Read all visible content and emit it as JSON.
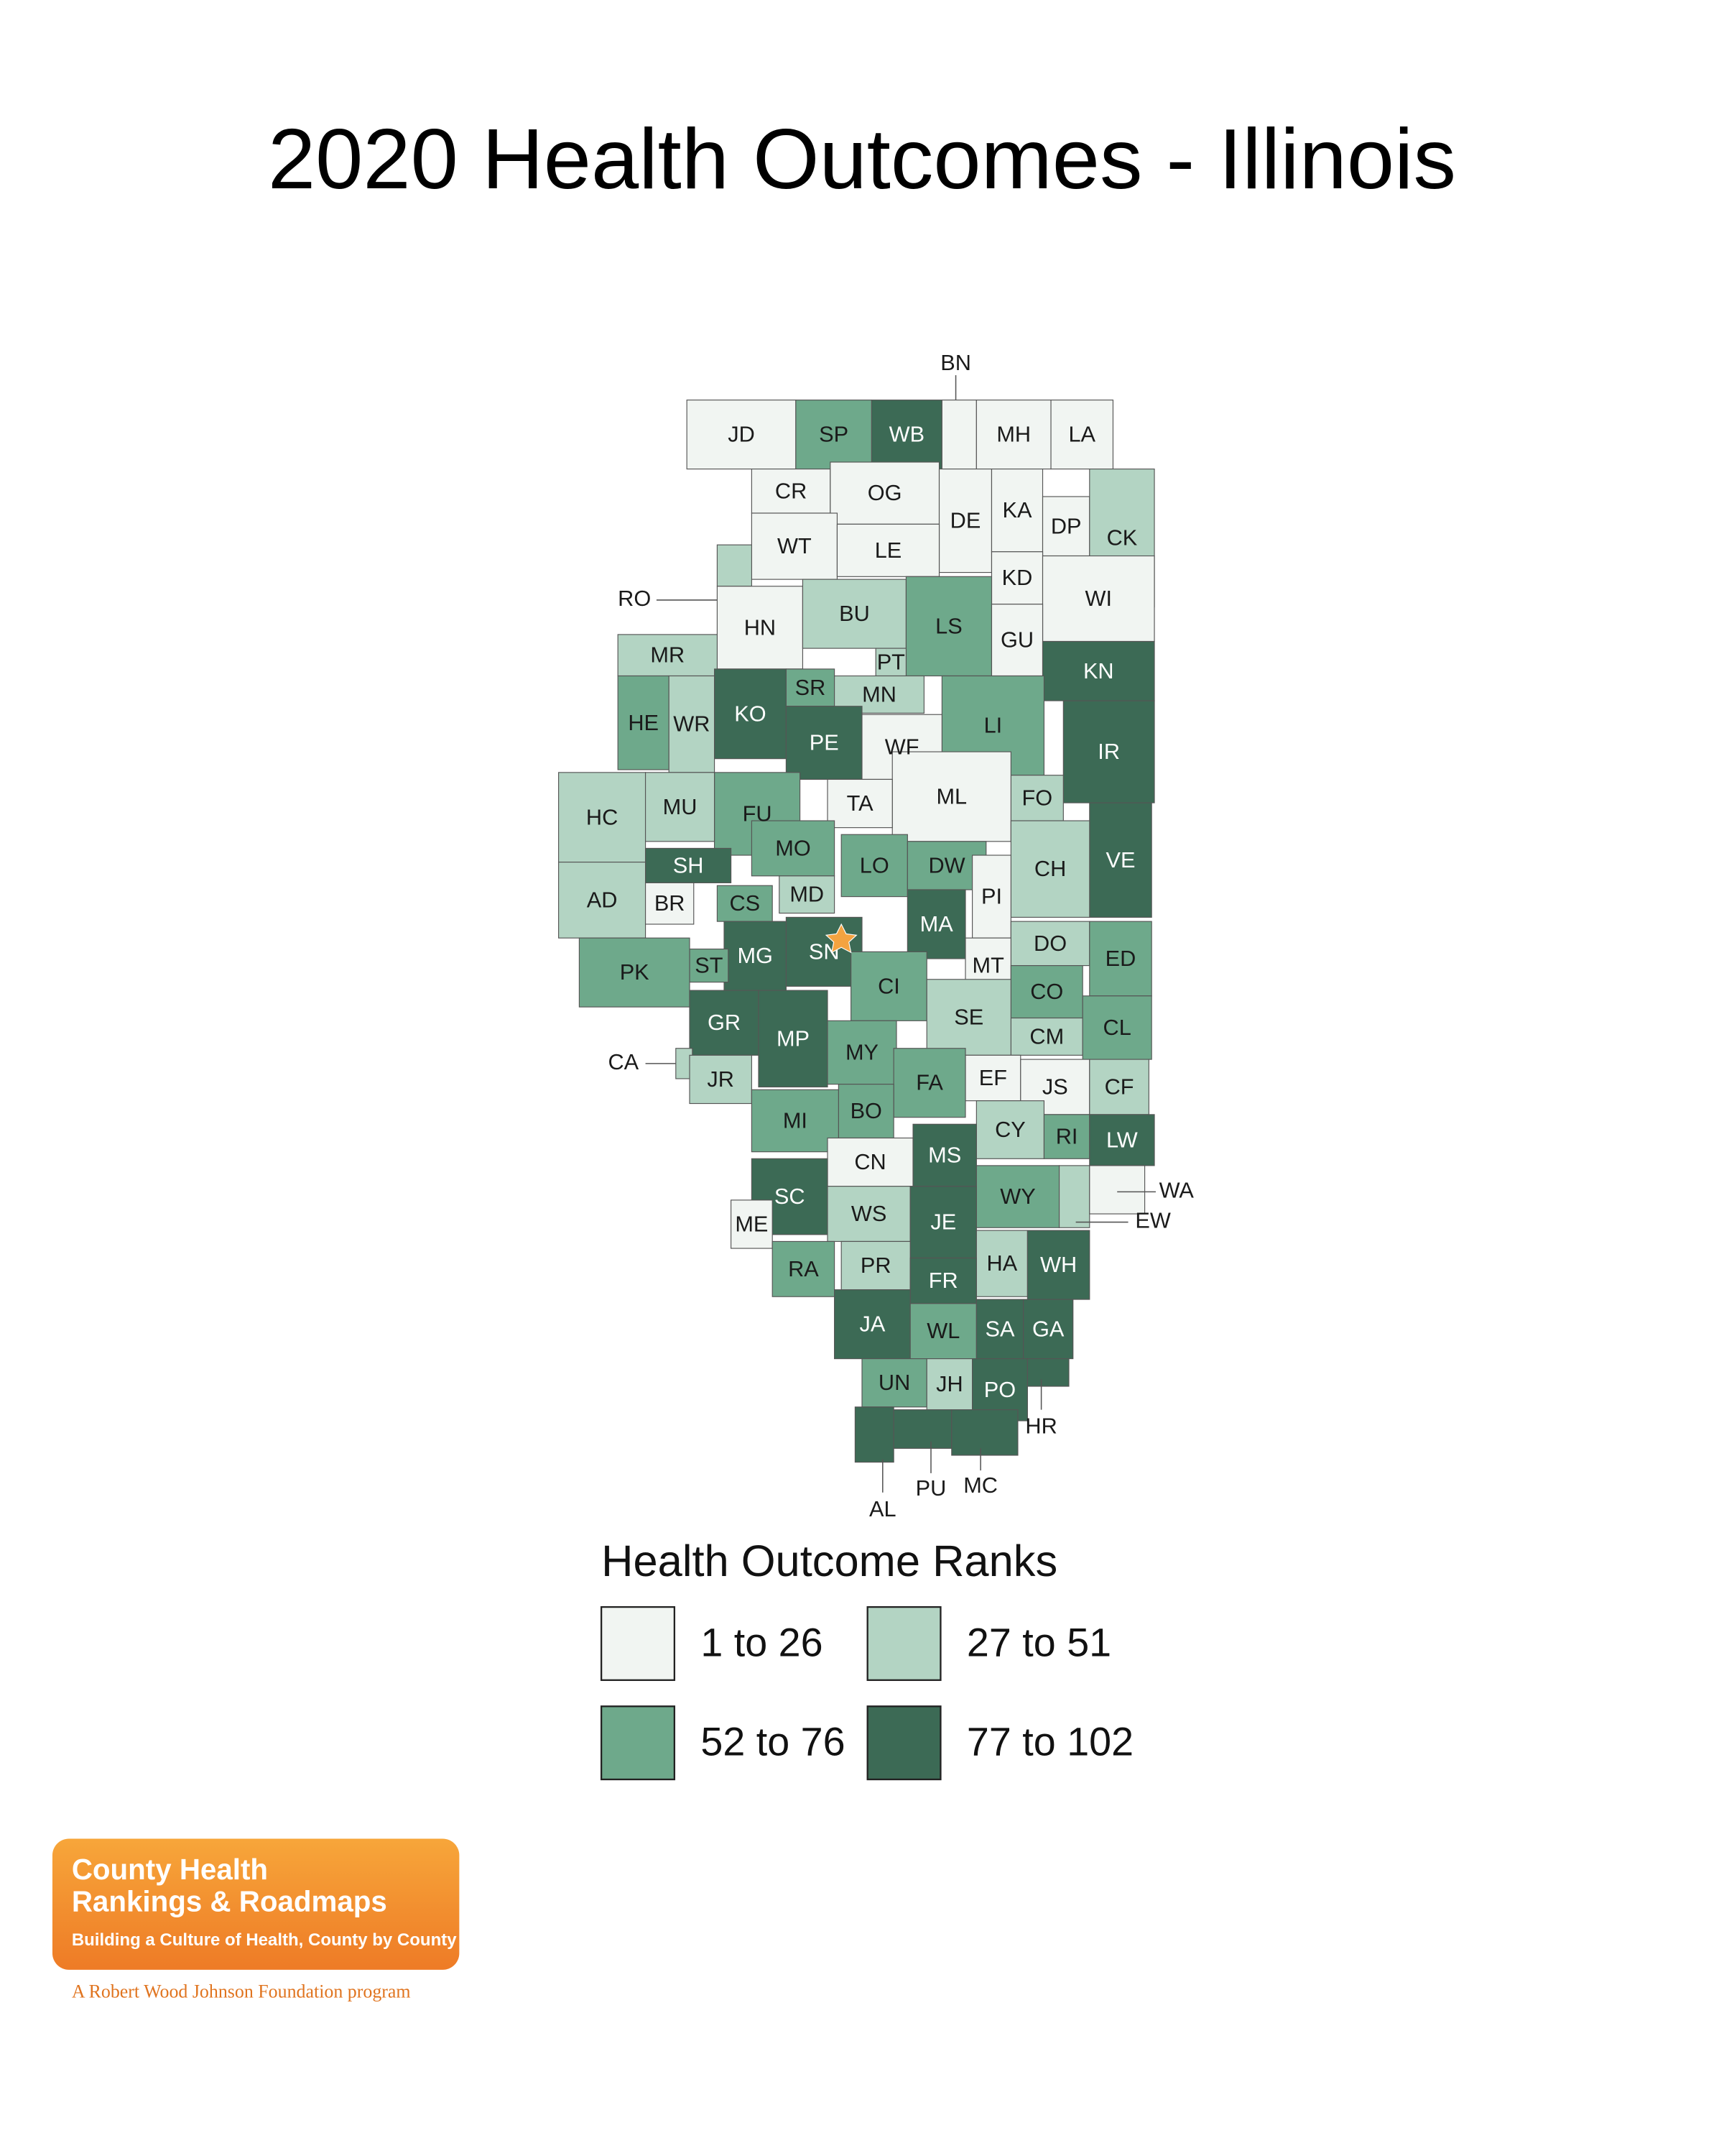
{
  "title": "2020 Health Outcomes - Illinois",
  "counties": [
    {
      "label": "JD",
      "outcome": "1 to 26"
    },
    {
      "label": "SP",
      "outcome": "52 to 76"
    },
    {
      "label": "WB",
      "outcome": "77 to 102"
    },
    {
      "label": "BN",
      "outcome": "1 to 26"
    },
    {
      "label": "MH",
      "outcome": "1 to 26"
    },
    {
      "label": "LA",
      "outcome": "1 to 26"
    },
    {
      "label": "CR",
      "outcome": "1 to 26"
    },
    {
      "label": "OG",
      "outcome": "1 to 26"
    },
    {
      "label": "DE",
      "outcome": "1 to 26"
    },
    {
      "label": "KA",
      "outcome": "1 to 26"
    },
    {
      "label": "DP",
      "outcome": "1 to 26"
    },
    {
      "label": "CK",
      "outcome": "27 to 51"
    },
    {
      "label": "WT",
      "outcome": "1 to 26"
    },
    {
      "label": "LE",
      "outcome": "1 to 26"
    },
    {
      "label": "KD",
      "outcome": "1 to 26"
    },
    {
      "label": "WI",
      "outcome": "1 to 26"
    },
    {
      "label": "RO",
      "outcome": "27 to 51"
    },
    {
      "label": "HN",
      "outcome": "1 to 26"
    },
    {
      "label": "BU",
      "outcome": "27 to 51"
    },
    {
      "label": "LS",
      "outcome": "52 to 76"
    },
    {
      "label": "GU",
      "outcome": "1 to 26"
    },
    {
      "label": "KN",
      "outcome": "77 to 102"
    },
    {
      "label": "MR",
      "outcome": "27 to 51"
    },
    {
      "label": "PT",
      "outcome": "27 to 51"
    },
    {
      "label": "SR",
      "outcome": "52 to 76"
    },
    {
      "label": "MN",
      "outcome": "27 to 51"
    },
    {
      "label": "KO",
      "outcome": "77 to 102"
    },
    {
      "label": "LI",
      "outcome": "52 to 76"
    },
    {
      "label": "IR",
      "outcome": "77 to 102"
    },
    {
      "label": "HE",
      "outcome": "52 to 76"
    },
    {
      "label": "WR",
      "outcome": "27 to 51"
    },
    {
      "label": "PE",
      "outcome": "77 to 102"
    },
    {
      "label": "WF",
      "outcome": "1 to 26"
    },
    {
      "label": "FO",
      "outcome": "27 to 51"
    },
    {
      "label": "ML",
      "outcome": "1 to 26"
    },
    {
      "label": "TA",
      "outcome": "1 to 26"
    },
    {
      "label": "FU",
      "outcome": "52 to 76"
    },
    {
      "label": "HC",
      "outcome": "27 to 51"
    },
    {
      "label": "MU",
      "outcome": "27 to 51"
    },
    {
      "label": "VE",
      "outcome": "77 to 102"
    },
    {
      "label": "CH",
      "outcome": "27 to 51"
    },
    {
      "label": "MO",
      "outcome": "52 to 76"
    },
    {
      "label": "LO",
      "outcome": "52 to 76"
    },
    {
      "label": "DW",
      "outcome": "52 to 76"
    },
    {
      "label": "SH",
      "outcome": "77 to 102"
    },
    {
      "label": "AD",
      "outcome": "27 to 51"
    },
    {
      "label": "BR",
      "outcome": "1 to 26"
    },
    {
      "label": "CS",
      "outcome": "52 to 76"
    },
    {
      "label": "MD",
      "outcome": "27 to 51"
    },
    {
      "label": "PI",
      "outcome": "1 to 26"
    },
    {
      "label": "MA",
      "outcome": "77 to 102"
    },
    {
      "label": "SN",
      "outcome": "77 to 102"
    },
    {
      "label": "MG",
      "outcome": "77 to 102"
    },
    {
      "label": "ST",
      "outcome": "52 to 76"
    },
    {
      "label": "PK",
      "outcome": "52 to 76"
    },
    {
      "label": "DO",
      "outcome": "27 to 51"
    },
    {
      "label": "ED",
      "outcome": "52 to 76"
    },
    {
      "label": "MT",
      "outcome": "1 to 26"
    },
    {
      "label": "CI",
      "outcome": "52 to 76"
    },
    {
      "label": "CO",
      "outcome": "52 to 76"
    },
    {
      "label": "CM",
      "outcome": "27 to 51"
    },
    {
      "label": "CL",
      "outcome": "52 to 76"
    },
    {
      "label": "SE",
      "outcome": "27 to 51"
    },
    {
      "label": "GR",
      "outcome": "77 to 102"
    },
    {
      "label": "MP",
      "outcome": "77 to 102"
    },
    {
      "label": "MY",
      "outcome": "52 to 76"
    },
    {
      "label": "CA",
      "outcome": "27 to 51"
    },
    {
      "label": "JR",
      "outcome": "27 to 51"
    },
    {
      "label": "EF",
      "outcome": "1 to 26"
    },
    {
      "label": "JS",
      "outcome": "1 to 26"
    },
    {
      "label": "CF",
      "outcome": "27 to 51"
    },
    {
      "label": "FA",
      "outcome": "52 to 76"
    },
    {
      "label": "BO",
      "outcome": "52 to 76"
    },
    {
      "label": "MI",
      "outcome": "52 to 76"
    },
    {
      "label": "CY",
      "outcome": "27 to 51"
    },
    {
      "label": "RI",
      "outcome": "52 to 76"
    },
    {
      "label": "LW",
      "outcome": "77 to 102"
    },
    {
      "label": "CN",
      "outcome": "1 to 26"
    },
    {
      "label": "MS",
      "outcome": "77 to 102"
    },
    {
      "label": "SC",
      "outcome": "77 to 102"
    },
    {
      "label": "WY",
      "outcome": "52 to 76"
    },
    {
      "label": "EW",
      "outcome": "27 to 51"
    },
    {
      "label": "WA",
      "outcome": "1 to 26"
    },
    {
      "label": "ME",
      "outcome": "1 to 26"
    },
    {
      "label": "WS",
      "outcome": "27 to 51"
    },
    {
      "label": "JE",
      "outcome": "77 to 102"
    },
    {
      "label": "RA",
      "outcome": "52 to 76"
    },
    {
      "label": "PR",
      "outcome": "27 to 51"
    },
    {
      "label": "HA",
      "outcome": "27 to 51"
    },
    {
      "label": "WH",
      "outcome": "77 to 102"
    },
    {
      "label": "FR",
      "outcome": "77 to 102"
    },
    {
      "label": "JA",
      "outcome": "77 to 102"
    },
    {
      "label": "WL",
      "outcome": "52 to 76"
    },
    {
      "label": "SA",
      "outcome": "77 to 102"
    },
    {
      "label": "GA",
      "outcome": "77 to 102"
    },
    {
      "label": "UN",
      "outcome": "52 to 76"
    },
    {
      "label": "JH",
      "outcome": "27 to 51"
    },
    {
      "label": "PO",
      "outcome": "77 to 102"
    },
    {
      "label": "HR",
      "outcome": "77 to 102"
    },
    {
      "label": "AL",
      "outcome": "77 to 102"
    },
    {
      "label": "PU",
      "outcome": "77 to 102"
    },
    {
      "label": "MC",
      "outcome": "77 to 102"
    }
  ],
  "legend": {
    "title": "Health Outcome Ranks",
    "items": [
      {
        "label": "1 to 26",
        "color": "#f1f5f2"
      },
      {
        "label": "27 to 51",
        "color": "#b3d4c3"
      },
      {
        "label": "52 to 76",
        "color": "#6ea98b"
      },
      {
        "label": "77 to 102",
        "color": "#3c6a55"
      }
    ]
  },
  "logo": {
    "line1": "County Health",
    "line2": "Rankings & Roadmaps",
    "tagline": "Building a Culture of Health, County by County",
    "footer": "A Robert Wood Johnson Foundation program"
  }
}
